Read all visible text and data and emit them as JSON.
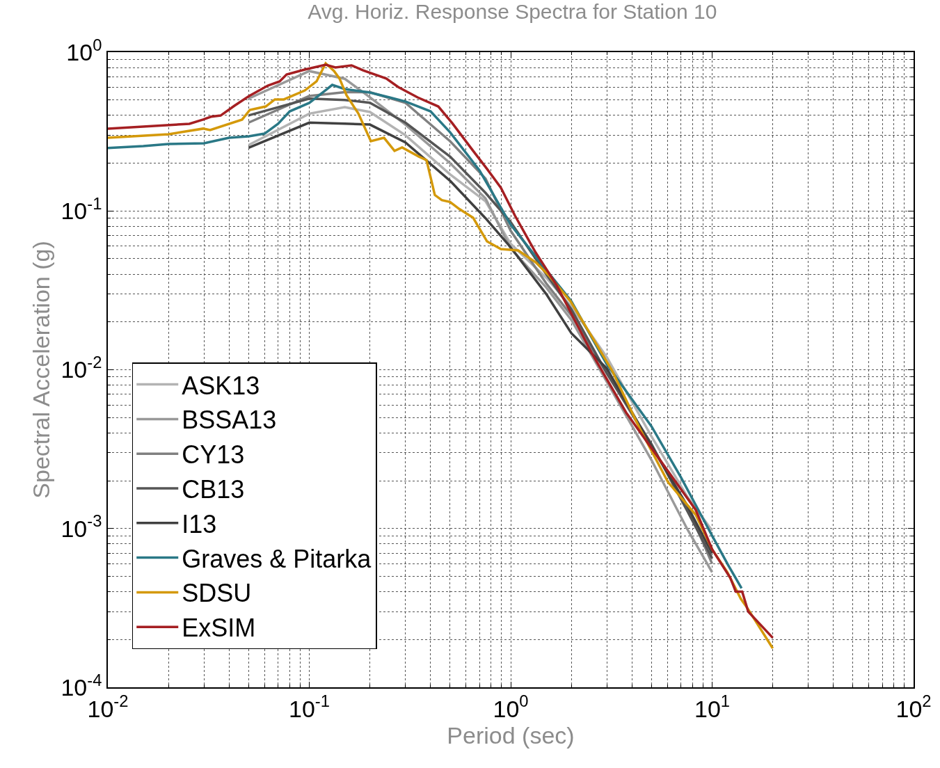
{
  "chart_data": {
    "type": "line",
    "title": "Avg. Horiz. Response Spectra for Station 10",
    "xlabel": "Period (sec)",
    "ylabel": "Spectral Acceleration (g)",
    "log": "xy",
    "grid": true,
    "legend": "bottom left",
    "line_style": "solid",
    "xlim": [
      0.01,
      100
    ],
    "ylim": [
      0.0001,
      1
    ],
    "xticks": [
      {
        "value": 0.01,
        "label": "10$^{-2}$"
      },
      {
        "value": 0.1,
        "label": "10$^{-1}$"
      },
      {
        "value": 1,
        "label": "10$^{0}$"
      },
      {
        "value": 10,
        "label": "10$^{1}$"
      },
      {
        "value": 100,
        "label": "10$^{2}$"
      }
    ],
    "yticks": [
      {
        "value": 0.0001,
        "label": "10$^{-4}$"
      },
      {
        "value": 0.001,
        "label": "10$^{-3}$"
      },
      {
        "value": 0.01,
        "label": "10$^{-2}$"
      },
      {
        "value": 0.1,
        "label": "10$^{-1}$"
      },
      {
        "value": 1,
        "label": "10$^{0}$"
      }
    ],
    "x": [
      0.05,
      0.1,
      0.15,
      0.2,
      0.3,
      0.5,
      0.75,
      1,
      1.5,
      2,
      3,
      5,
      7.5,
      10
    ],
    "series": [
      {
        "name": "ASK13",
        "color": "#b3b3b3",
        "values": [
          0.26,
          0.41,
          0.45,
          0.42,
          0.3,
          0.17,
          0.115,
          0.062,
          0.038,
          0.025,
          0.012,
          0.0038,
          0.0016,
          0.00097
        ]
      },
      {
        "name": "BSSA13",
        "color": "#999999",
        "values": [
          0.51,
          0.76,
          0.68,
          0.52,
          0.35,
          0.2,
          0.12,
          0.058,
          0.033,
          0.0206,
          0.0084,
          0.0027,
          0.001,
          0.00053
        ]
      },
      {
        "name": "CY13",
        "color": "#808080",
        "values": [
          0.36,
          0.53,
          0.56,
          0.56,
          0.48,
          0.275,
          0.16,
          0.075,
          0.035,
          0.022,
          0.0095,
          0.0033,
          0.0014,
          0.0006
        ]
      },
      {
        "name": "CB13",
        "color": "#555555",
        "values": [
          0.4,
          0.51,
          0.5,
          0.48,
          0.36,
          0.22,
          0.13,
          0.085,
          0.04,
          0.024,
          0.0095,
          0.0034,
          0.0013,
          0.00065
        ]
      },
      {
        "name": "I13",
        "color": "#404040",
        "values": [
          0.25,
          0.36,
          0.355,
          0.35,
          0.27,
          0.155,
          0.09,
          0.059,
          0.03,
          0.017,
          0.0102,
          0.0033,
          0.0014,
          0.0007
        ]
      },
      {
        "name": "Graves & Pitarka",
        "color": "#2a7886",
        "x": [
          0.01,
          0.015,
          0.02,
          0.03,
          0.04,
          0.05,
          0.06,
          0.07,
          0.08,
          0.1,
          0.12,
          0.13,
          0.15,
          0.2,
          0.25,
          0.3,
          0.4,
          0.5,
          0.7,
          1,
          1.5,
          2,
          3,
          5,
          7,
          10,
          12,
          14
        ],
        "values": [
          0.249,
          0.256,
          0.264,
          0.267,
          0.289,
          0.295,
          0.307,
          0.354,
          0.424,
          0.479,
          0.574,
          0.622,
          0.586,
          0.557,
          0.519,
          0.489,
          0.424,
          0.313,
          0.18,
          0.0819,
          0.0426,
          0.027,
          0.0108,
          0.0044,
          0.0021,
          0.0009,
          0.00059,
          0.00042
        ]
      },
      {
        "name": "SDSU",
        "color": "#d4990a",
        "x": [
          0.01,
          0.02,
          0.0297,
          0.0322,
          0.0464,
          0.0507,
          0.0608,
          0.0675,
          0.0748,
          0.095,
          0.1087,
          0.1206,
          0.1326,
          0.1413,
          0.1531,
          0.1752,
          0.2022,
          0.235,
          0.265,
          0.289,
          0.35,
          0.382,
          0.42,
          0.455,
          0.5,
          0.555,
          0.651,
          0.763,
          0.894,
          1.09,
          1.33,
          1.56,
          1.98,
          2.52,
          3.19,
          4.39,
          6.04,
          8.29,
          10,
          11.9,
          13.9,
          15.1,
          20
        ],
        "values": [
          0.289,
          0.304,
          0.33,
          0.323,
          0.376,
          0.433,
          0.455,
          0.504,
          0.504,
          0.574,
          0.655,
          0.851,
          0.762,
          0.682,
          0.535,
          0.411,
          0.275,
          0.289,
          0.239,
          0.251,
          0.22,
          0.209,
          0.126,
          0.117,
          0.114,
          0.103,
          0.0906,
          0.0643,
          0.0575,
          0.0564,
          0.0475,
          0.0388,
          0.027,
          0.0163,
          0.00985,
          0.00422,
          0.00196,
          0.00122,
          0.00074,
          0.00053,
          0.00036,
          0.00031,
          0.000176
        ]
      },
      {
        "name": "ExSIM",
        "color": "#a51f22",
        "x": [
          0.01,
          0.0254,
          0.0297,
          0.0325,
          0.0363,
          0.0425,
          0.0503,
          0.0623,
          0.0713,
          0.0772,
          0.095,
          0.1206,
          0.1348,
          0.162,
          0.185,
          0.241,
          0.276,
          0.345,
          0.437,
          0.513,
          0.651,
          0.763,
          0.894,
          1.05,
          1.33,
          1.69,
          2.52,
          3.74,
          5.57,
          8.29,
          10,
          12.3,
          13.1,
          14.1,
          15.1,
          20
        ],
        "values": [
          0.33,
          0.354,
          0.376,
          0.392,
          0.399,
          0.46,
          0.53,
          0.616,
          0.655,
          0.724,
          0.777,
          0.834,
          0.801,
          0.826,
          0.769,
          0.682,
          0.604,
          0.519,
          0.455,
          0.357,
          0.239,
          0.184,
          0.14,
          0.0934,
          0.0547,
          0.0341,
          0.0128,
          0.00538,
          0.00265,
          0.00131,
          0.00074,
          0.00049,
          0.0004,
          0.0004,
          0.0003,
          0.000205
        ]
      }
    ]
  }
}
